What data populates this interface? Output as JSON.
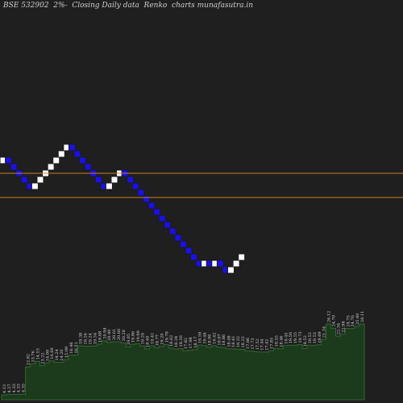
{
  "title": "BSE 532902  2%-  Closing Daily data  Renko  charts munafasutra.in",
  "colors": {
    "background": "#1f1f1f",
    "up_fill": "#ffffff",
    "down_fill": "#1a10e8",
    "brick_border": "#1a1a1a",
    "level_line": "#c8802a",
    "volume_fill": "#1c3a1c",
    "volume_edge": "#2f6a2f",
    "volume_label": "#d8d8d8"
  },
  "chart_data": {
    "type": "renko",
    "brick_size": "2%",
    "renko_steps": [
      1,
      -1,
      -1,
      -1,
      -1,
      -1,
      1,
      1,
      1,
      1,
      1,
      1,
      1,
      -1,
      -1,
      -1,
      -1,
      -1,
      -1,
      -1,
      1,
      1,
      1,
      -1,
      -1,
      -1,
      -1,
      -1,
      -1,
      -1,
      -1,
      -1,
      -1,
      -1,
      -1,
      -1,
      -1,
      -1,
      1,
      -1,
      1,
      -1,
      -1,
      1,
      1,
      1
    ],
    "horizontal_lines": [
      16.6,
      15.47
    ],
    "volume_labels": [
      "4.13",
      "4.27",
      "4.33",
      "4.33",
      "4.35",
      "12.82",
      "13.76",
      "14.53",
      "13.22",
      "14.09",
      "14.69",
      "14.24",
      "14.20",
      "15.09",
      "16.46",
      "16.51",
      "19.38",
      "19.26",
      "19.24",
      "19.34",
      "19.88",
      "20.94",
      "20.40",
      "20.61",
      "20.60",
      "20.28",
      "19.05",
      "19.86",
      "19.99",
      "19.29",
      "18.40",
      "19.41",
      "18.77",
      "19.20",
      "19.78",
      "18.62",
      "18.34",
      "18.50",
      "17.82",
      "17.98",
      "18.17",
      "19.59",
      "19.46",
      "18.90",
      "19.42",
      "18.97",
      "18.86",
      "18.48",
      "18.41",
      "18.32",
      "18.25",
      "17.86",
      "17.73",
      "17.52",
      "17.44",
      "17.42",
      "17.85",
      "18.55",
      "18.46",
      "19.45",
      "19.56",
      "19.55",
      "19.73",
      "18.52",
      "19.52",
      "19.53",
      "19.69",
      "21.34",
      "26.12",
      "24.79",
      "22.34",
      "22.98",
      "24.75",
      "24.76",
      "25.40",
      "26.11"
    ]
  }
}
